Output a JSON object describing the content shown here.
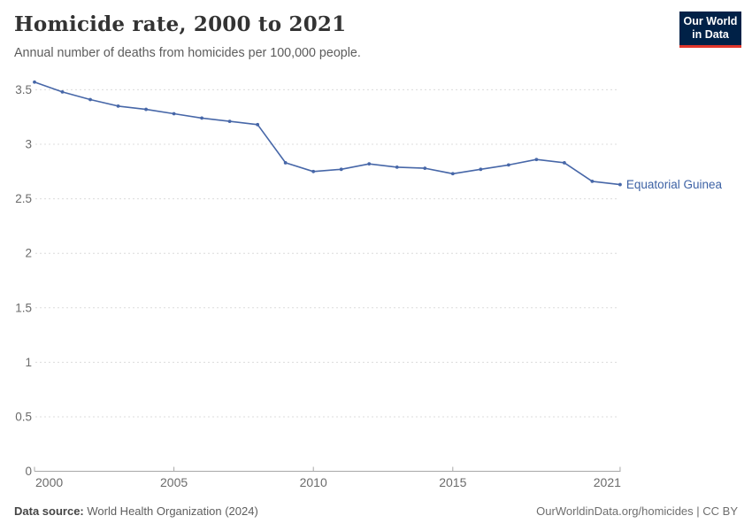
{
  "header": {
    "title": "Homicide rate, 2000 to 2021",
    "subtitle": "Annual number of deaths from homicides per 100,000 people."
  },
  "logo": {
    "line1": "Our World",
    "line2": "in Data"
  },
  "footer": {
    "source_label": "Data source:",
    "source_value": " World Health Organization (2024)",
    "credit": "OurWorldinData.org/homicides | CC BY"
  },
  "colors": {
    "series": "#4767a8",
    "end_label": "#3d62a5",
    "gridline": "#dcdcdc",
    "axis": "#a8a8a8",
    "tick_label": "#6b6b6b",
    "logo_bg": "#002147",
    "logo_accent": "#e2362b"
  },
  "chart_data": {
    "type": "line",
    "title": "Homicide rate, 2000 to 2021",
    "xlabel": "",
    "ylabel": "",
    "x": [
      2000,
      2001,
      2002,
      2003,
      2004,
      2005,
      2006,
      2007,
      2008,
      2009,
      2010,
      2011,
      2012,
      2013,
      2014,
      2015,
      2016,
      2017,
      2018,
      2019,
      2020,
      2021
    ],
    "series": [
      {
        "name": "Equatorial Guinea",
        "values": [
          3.57,
          3.48,
          3.41,
          3.35,
          3.32,
          3.28,
          3.24,
          3.21,
          3.18,
          2.83,
          2.75,
          2.77,
          2.82,
          2.79,
          2.78,
          2.73,
          2.77,
          2.81,
          2.86,
          2.83,
          2.66,
          2.63
        ]
      }
    ],
    "x_ticks": [
      2000,
      2005,
      2010,
      2015,
      2021
    ],
    "y_ticks": [
      0,
      0.5,
      1,
      1.5,
      2,
      2.5,
      3,
      3.5
    ],
    "xlim": [
      2000,
      2021
    ],
    "ylim": [
      0,
      3.5
    ],
    "grid": "horizontal-dashed",
    "legend": "end-of-line-label",
    "end_label": "Equatorial Guinea"
  }
}
